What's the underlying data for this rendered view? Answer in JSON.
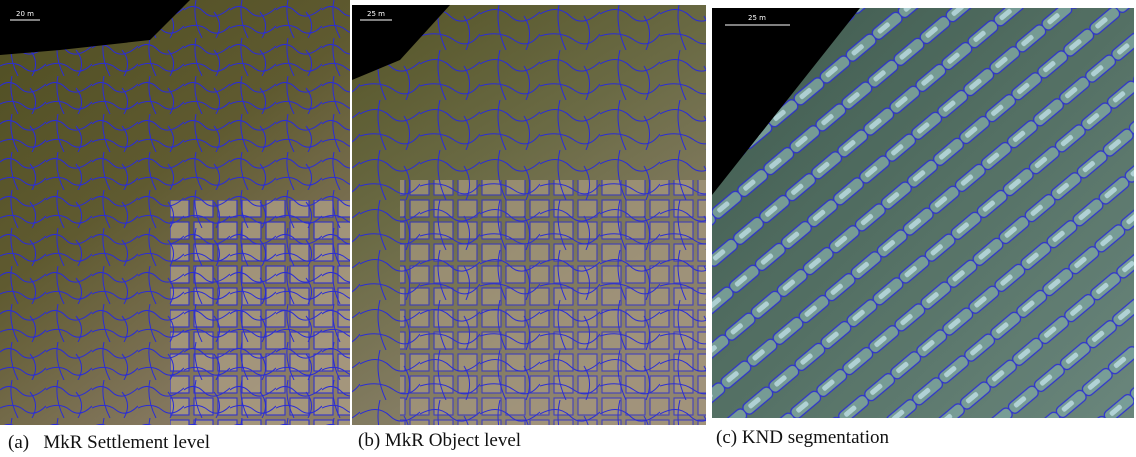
{
  "panels": [
    {
      "scale_label": "20 m",
      "caption": "(a)   MkR Settlement level"
    },
    {
      "scale_label": "25 m",
      "caption": "(b) MkR Object level"
    },
    {
      "scale_label": "25 m",
      "caption": "(c) KND segmentation"
    }
  ]
}
